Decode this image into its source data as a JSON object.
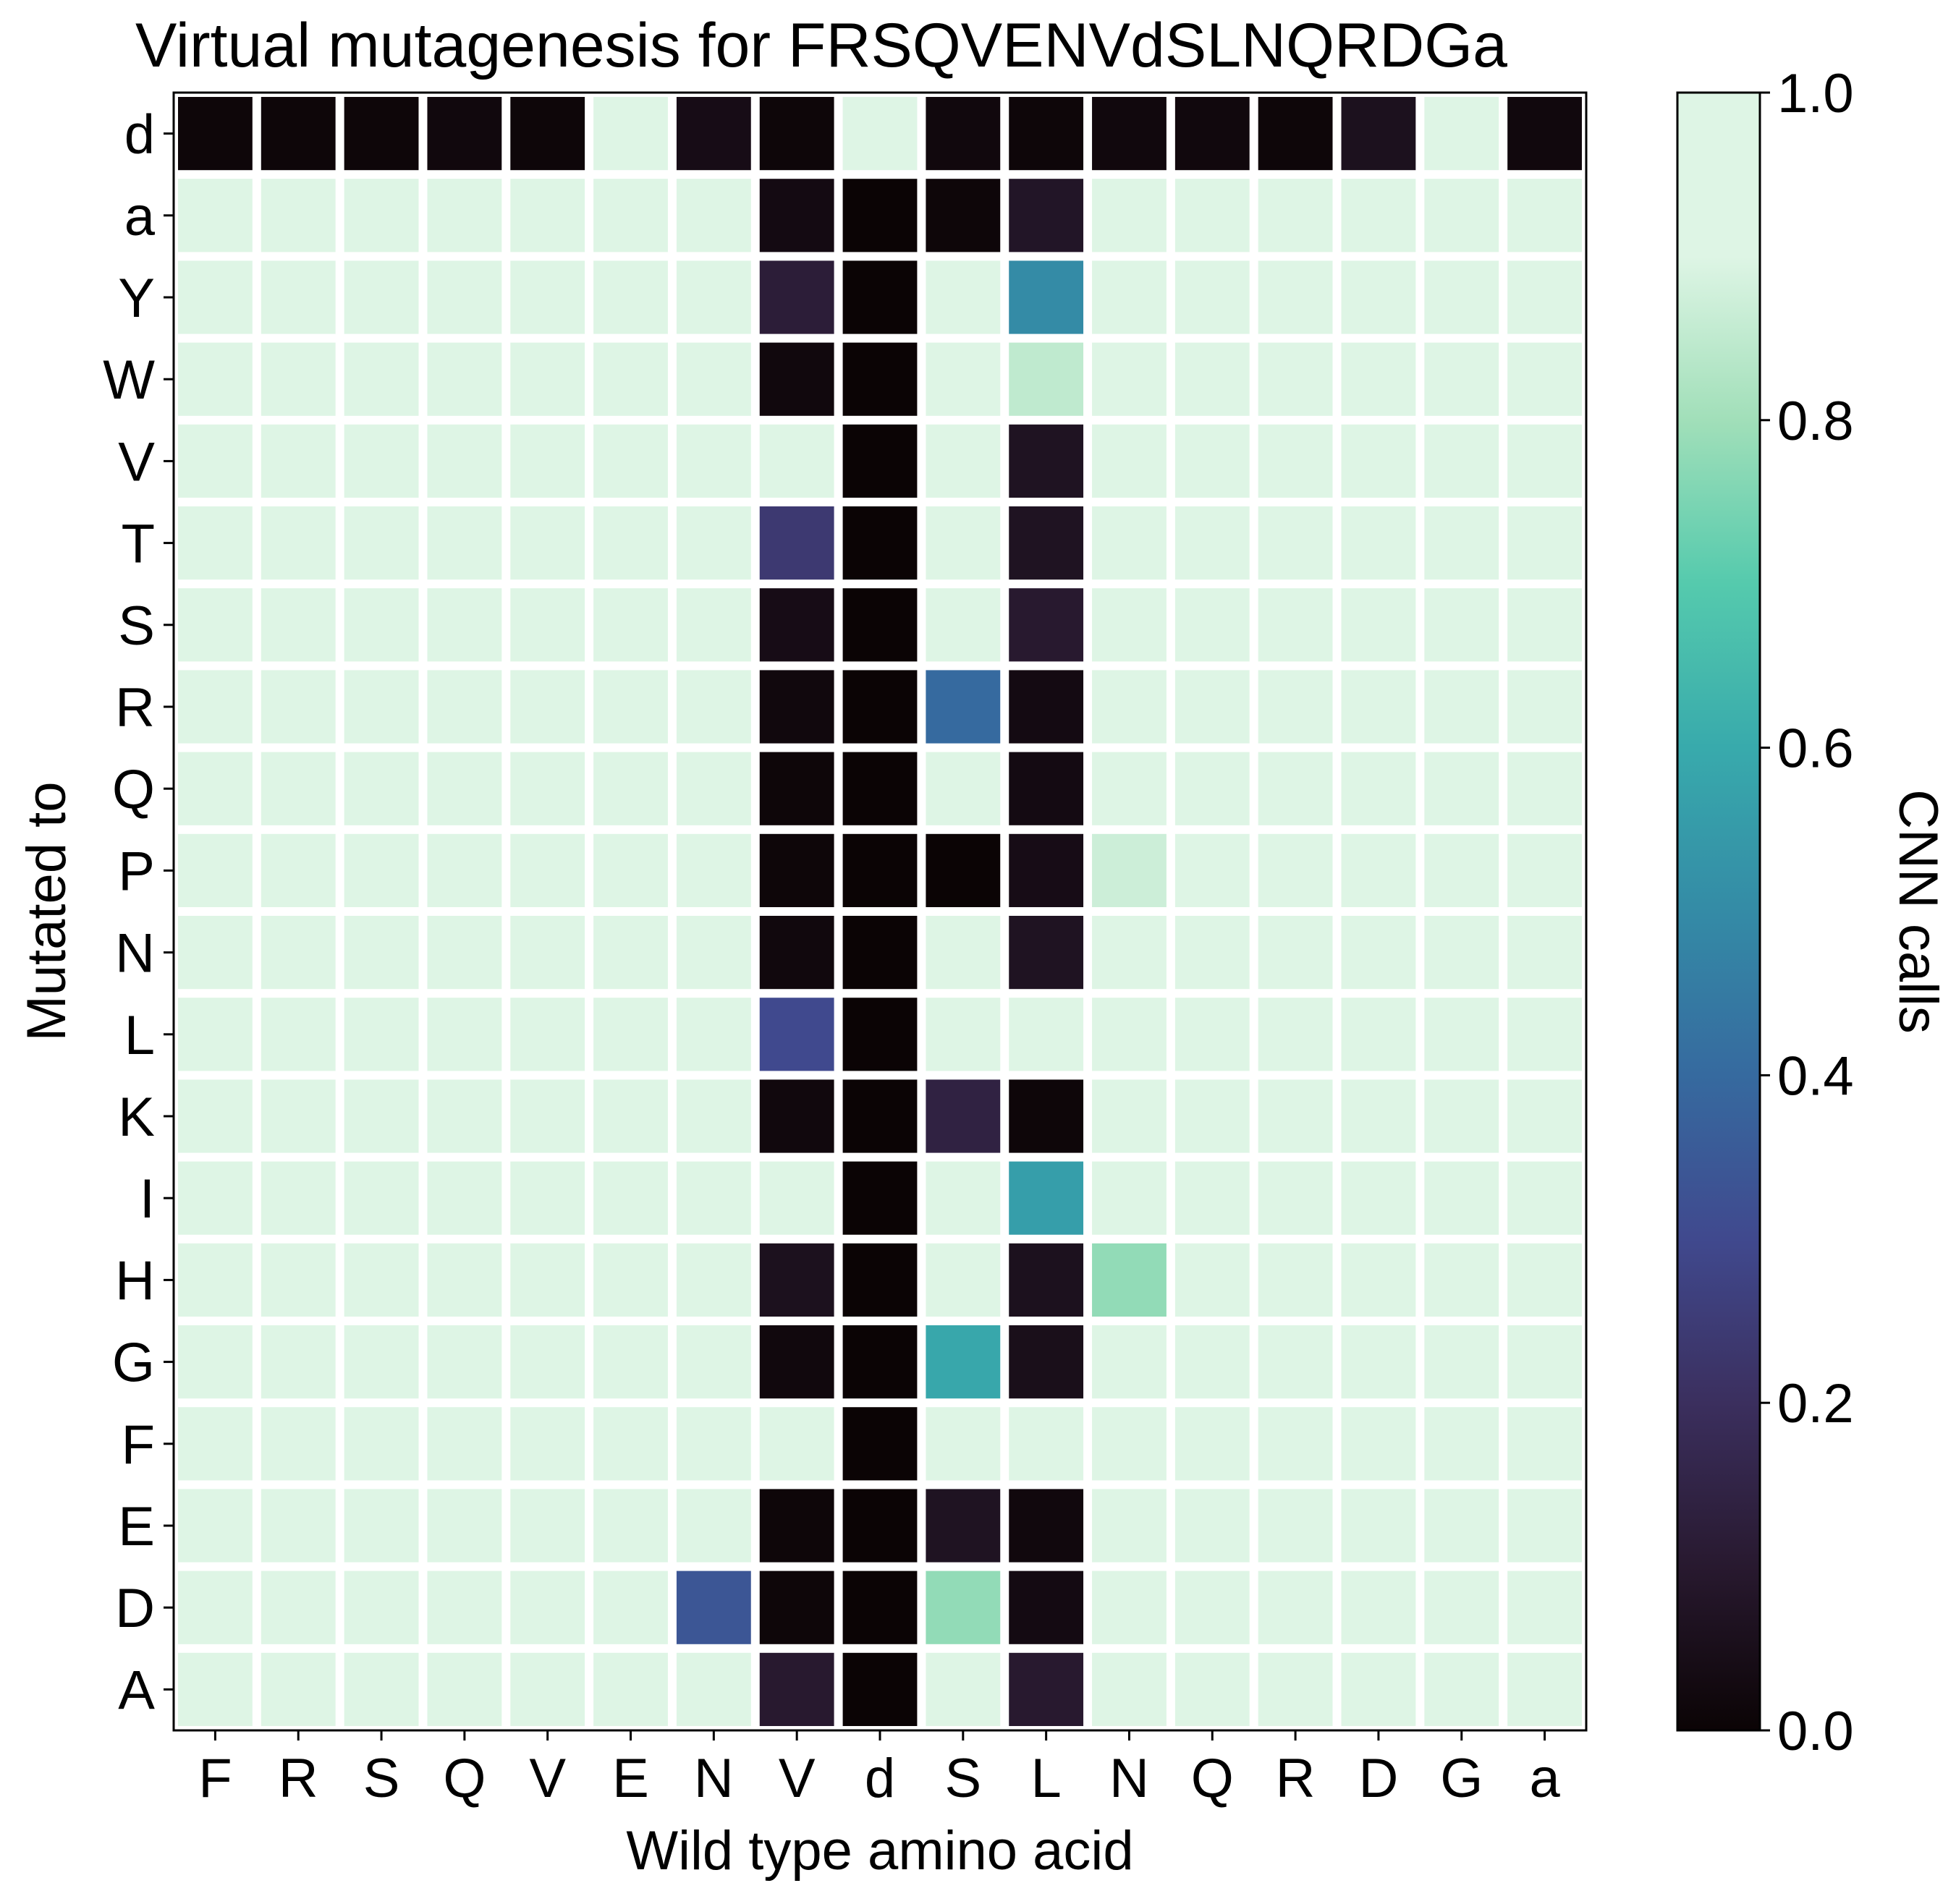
{
  "chart_data": {
    "type": "heatmap",
    "title": "Virtual mutagenesis for FRSQVENVdSLNQRDGa",
    "xlabel": "Wild type amino acid",
    "ylabel": "Mutated to",
    "x_categories": [
      "F",
      "R",
      "S",
      "Q",
      "V",
      "E",
      "N",
      "V",
      "d",
      "S",
      "L",
      "N",
      "Q",
      "R",
      "D",
      "G",
      "a"
    ],
    "y_categories": [
      "d",
      "a",
      "Y",
      "W",
      "V",
      "T",
      "S",
      "R",
      "Q",
      "P",
      "N",
      "L",
      "K",
      "I",
      "H",
      "G",
      "F",
      "E",
      "D",
      "A"
    ],
    "values": [
      [
        0.01,
        0.01,
        0.01,
        0.02,
        0.01,
        0.97,
        0.04,
        0.01,
        0.98,
        0.02,
        0.01,
        0.02,
        0.02,
        0.01,
        0.06,
        0.98,
        0.02
      ],
      [
        0.95,
        0.97,
        0.97,
        0.97,
        0.97,
        0.97,
        0.97,
        0.03,
        0.0,
        0.01,
        0.08,
        0.93,
        0.97,
        0.97,
        0.97,
        0.97,
        0.97
      ],
      [
        0.97,
        0.97,
        0.97,
        0.97,
        0.97,
        0.97,
        0.97,
        0.12,
        0.0,
        0.97,
        0.5,
        0.97,
        0.97,
        0.97,
        0.97,
        0.97,
        0.97
      ],
      [
        0.97,
        0.97,
        0.97,
        0.97,
        0.97,
        0.97,
        0.97,
        0.02,
        0.0,
        0.97,
        0.85,
        0.97,
        0.97,
        0.97,
        0.97,
        0.97,
        0.97
      ],
      [
        0.97,
        0.97,
        0.97,
        0.97,
        0.97,
        0.97,
        0.97,
        0.97,
        0.0,
        0.97,
        0.07,
        0.97,
        0.97,
        0.97,
        0.97,
        0.97,
        0.97
      ],
      [
        0.96,
        0.97,
        0.97,
        0.97,
        0.97,
        0.97,
        0.97,
        0.24,
        0.0,
        0.97,
        0.07,
        0.97,
        0.97,
        0.97,
        0.97,
        0.97,
        0.97
      ],
      [
        0.96,
        0.97,
        0.97,
        0.97,
        0.97,
        0.97,
        0.97,
        0.04,
        0.0,
        0.97,
        0.1,
        0.97,
        0.97,
        0.97,
        0.97,
        0.97,
        0.97
      ],
      [
        0.95,
        0.97,
        0.97,
        0.97,
        0.97,
        0.97,
        0.92,
        0.02,
        0.0,
        0.4,
        0.03,
        0.97,
        0.96,
        0.97,
        0.97,
        0.97,
        0.97
      ],
      [
        0.96,
        0.97,
        0.97,
        0.97,
        0.97,
        0.97,
        0.97,
        0.01,
        0.0,
        0.96,
        0.03,
        0.97,
        0.97,
        0.97,
        0.97,
        0.97,
        0.97
      ],
      [
        0.96,
        0.97,
        0.97,
        0.97,
        0.97,
        0.97,
        0.97,
        0.01,
        0.0,
        0.0,
        0.04,
        0.87,
        0.97,
        0.97,
        0.97,
        0.97,
        0.97
      ],
      [
        0.96,
        0.97,
        0.97,
        0.97,
        0.97,
        0.97,
        0.97,
        0.02,
        0.0,
        0.97,
        0.07,
        0.97,
        0.97,
        0.97,
        0.97,
        0.97,
        0.97
      ],
      [
        0.97,
        0.97,
        0.97,
        0.97,
        0.97,
        0.97,
        0.97,
        0.3,
        0.0,
        0.96,
        0.97,
        0.97,
        0.97,
        0.97,
        0.97,
        0.97,
        0.97
      ],
      [
        0.93,
        0.97,
        0.97,
        0.97,
        0.93,
        0.97,
        0.9,
        0.02,
        0.0,
        0.14,
        0.01,
        0.97,
        0.96,
        0.97,
        0.97,
        0.97,
        0.97
      ],
      [
        0.97,
        0.97,
        0.97,
        0.97,
        0.97,
        0.97,
        0.97,
        0.97,
        0.0,
        0.96,
        0.56,
        0.97,
        0.97,
        0.97,
        0.97,
        0.97,
        0.97
      ],
      [
        0.96,
        0.97,
        0.97,
        0.97,
        0.97,
        0.97,
        0.97,
        0.06,
        0.0,
        0.97,
        0.06,
        0.78,
        0.96,
        0.97,
        0.97,
        0.97,
        0.97
      ],
      [
        0.96,
        0.97,
        0.97,
        0.97,
        0.97,
        0.97,
        0.97,
        0.02,
        0.0,
        0.59,
        0.05,
        0.97,
        0.97,
        0.97,
        0.97,
        0.97,
        0.97
      ],
      [
        0.97,
        0.97,
        0.97,
        0.97,
        0.97,
        0.97,
        0.97,
        0.97,
        0.0,
        0.97,
        0.96,
        0.97,
        0.97,
        0.97,
        0.97,
        0.97,
        0.97
      ],
      [
        0.95,
        0.97,
        0.97,
        0.97,
        0.97,
        0.97,
        0.91,
        0.01,
        0.0,
        0.07,
        0.02,
        0.97,
        0.96,
        0.95,
        0.97,
        0.97,
        0.97
      ],
      [
        0.96,
        0.97,
        0.97,
        0.97,
        0.97,
        0.97,
        0.34,
        0.01,
        0.0,
        0.78,
        0.03,
        0.97,
        0.92,
        0.97,
        0.97,
        0.97,
        0.96
      ],
      [
        0.96,
        0.97,
        0.97,
        0.97,
        0.97,
        0.97,
        0.97,
        0.1,
        0.0,
        0.97,
        0.1,
        0.97,
        0.97,
        0.97,
        0.97,
        0.97,
        0.97
      ]
    ],
    "colorbar": {
      "label": "CNN calls",
      "range": [
        0.0,
        1.0
      ],
      "ticks": [
        "0.0",
        "0.2",
        "0.4",
        "0.6",
        "0.8",
        "1.0"
      ],
      "colormap": "mako"
    },
    "grid": false
  }
}
